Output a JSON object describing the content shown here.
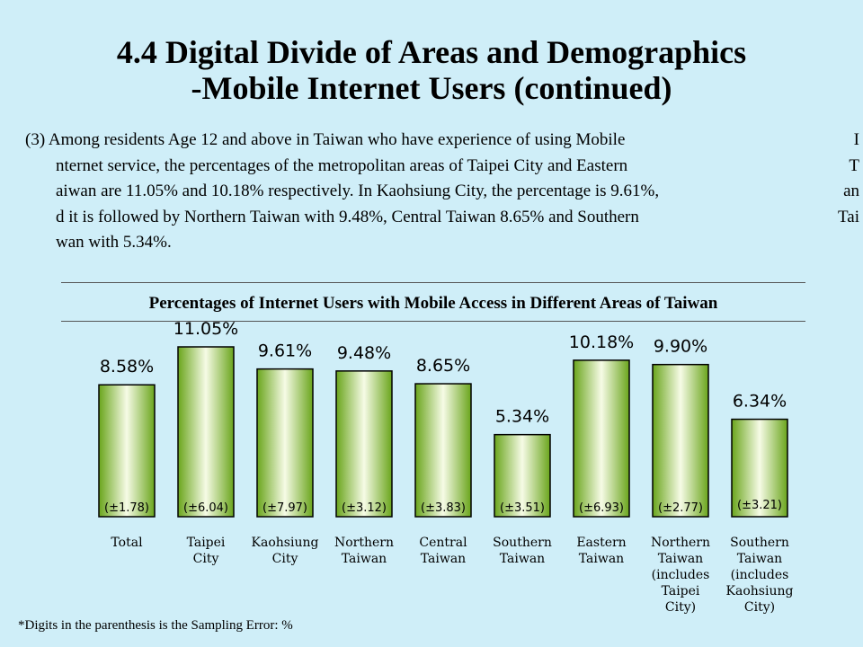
{
  "page": {
    "title_line1": "4.4 Digital Divide of Areas and Demographics",
    "title_line2": "-Mobile Internet Users (continued)",
    "paragraph": [
      {
        "left": "(3) Among residents Age 12 and above in Taiwan who have experience of using Mobile",
        "right": "I"
      },
      {
        "left": "nternet service, the percentages of the metropolitan areas of Taipei City and Eastern",
        "right": "T"
      },
      {
        "left": "aiwan are 11.05% and 10.18% respectively. In Kaohsiung City, the percentage is 9.61%,",
        "right": "an"
      },
      {
        "left": "d it is followed by Northern Taiwan with 9.48%, Central Taiwan 8.65% and Southern",
        "right": "Tai"
      },
      {
        "left": "wan with 5.34%.",
        "right": ""
      }
    ],
    "footnote": "*Digits in the parenthesis is the Sampling Error: %"
  },
  "colors": {
    "background": "#cfeef8",
    "bar_edge": "#6aa51c",
    "bar_center": "#f6fbe6",
    "bar_stroke": "#000000"
  },
  "chart_data": {
    "type": "bar",
    "title": "Percentages of Internet Users with Mobile Access in Different Areas of Taiwan",
    "categories": [
      [
        "Total"
      ],
      [
        "Taipei",
        "City"
      ],
      [
        "Kaohsiung",
        "City"
      ],
      [
        "Northern",
        "Taiwan"
      ],
      [
        "Central",
        "Taiwan"
      ],
      [
        "Southern",
        "Taiwan"
      ],
      [
        "Eastern",
        "Taiwan"
      ],
      [
        "Northern",
        "Taiwan",
        "(includes",
        "Taipei",
        "City)"
      ],
      [
        "Southern",
        "Taiwan",
        "(includes",
        "Kaohsiung",
        "City)"
      ]
    ],
    "values": [
      8.58,
      11.05,
      9.61,
      9.48,
      8.65,
      5.34,
      10.18,
      9.9,
      6.34
    ],
    "value_labels": [
      "8.58%",
      "11.05%",
      "9.61%",
      "9.48%",
      "8.65%",
      "5.34%",
      "10.18%",
      "9.90%",
      "6.34%"
    ],
    "sampling_errors": [
      "(±1.78)",
      "(±6.04)",
      "(±7.97)",
      "(±3.12)",
      "(±3.83)",
      "(±3.51)",
      "(±6.93)",
      "(±2.77)",
      "(±3.21)"
    ],
    "xlabel": "",
    "ylabel": "",
    "ylim": [
      0,
      11.05
    ],
    "grid": false,
    "legend": "none"
  }
}
